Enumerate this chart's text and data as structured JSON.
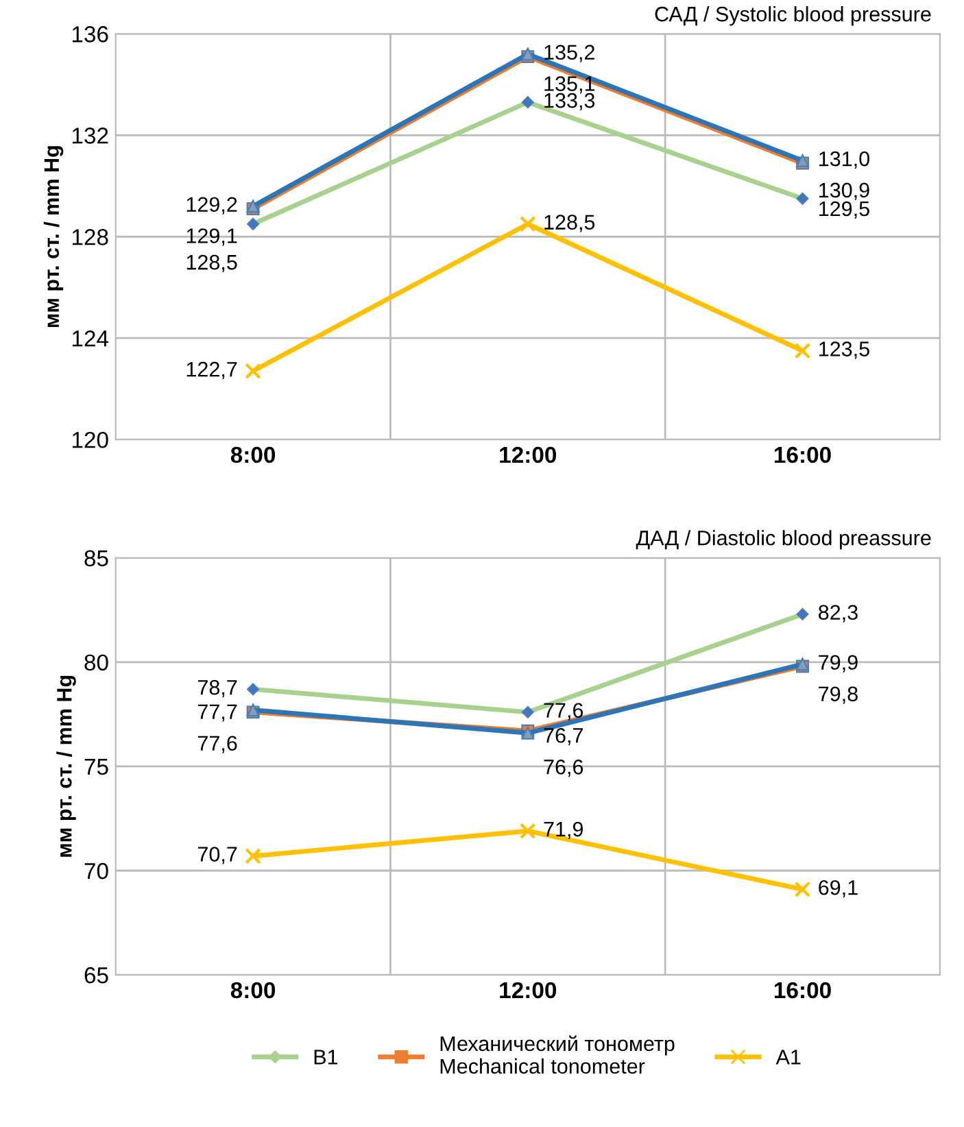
{
  "chart_data": [
    {
      "type": "line",
      "title": "САД / Systolic blood pressure",
      "ylabel": "мм рт. ст. / mm Hg",
      "categories": [
        "8:00",
        "12:00",
        "16:00"
      ],
      "ylim": [
        120,
        136
      ],
      "yticks": [
        120,
        124,
        128,
        132,
        136
      ],
      "grid": true,
      "legend": false,
      "series": [
        {
          "color": "#a9d18e",
          "marker": "diamond",
          "values": [
            128.5,
            133.3,
            129.5
          ],
          "value_labels": [
            "128,5",
            "133,3",
            "129,5"
          ]
        },
        {
          "color": "#ed7d31",
          "marker": "square",
          "values": [
            129.1,
            135.1,
            130.9
          ],
          "value_labels": [
            "129,1",
            "135,1",
            "130,9"
          ]
        },
        {
          "color": "#2e75b6",
          "marker": "triangle",
          "values": [
            129.2,
            135.2,
            131.0
          ],
          "value_labels": [
            "129,2",
            "135,2",
            "131,0"
          ]
        },
        {
          "color": "#ffc000",
          "marker": "cross",
          "values": [
            122.7,
            128.5,
            123.5
          ],
          "value_labels": [
            "122,7",
            "128,5",
            "123,5"
          ]
        }
      ]
    },
    {
      "type": "line",
      "title": "ДАД / Diastolic blood preassure",
      "ylabel": "мм рт. ст. / mm Hg",
      "categories": [
        "8:00",
        "12:00",
        "16:00"
      ],
      "ylim": [
        65,
        85
      ],
      "yticks": [
        65,
        70,
        75,
        80,
        85
      ],
      "grid": true,
      "legend": "bottom",
      "series": [
        {
          "name": "B1",
          "color": "#a9d18e",
          "marker": "diamond",
          "values": [
            78.7,
            77.6,
            82.3
          ],
          "value_labels": [
            "78,7",
            "77,6",
            "82,3"
          ]
        },
        {
          "name": "Механический тонометр\nMechanical tonometer",
          "color": "#ed7d31",
          "marker": "square",
          "values": [
            77.6,
            76.7,
            79.8
          ],
          "value_labels": [
            "77,6",
            "76,7",
            "79,8"
          ]
        },
        {
          "color": "#2e75b6",
          "marker": "triangle",
          "values": [
            77.7,
            76.6,
            79.9
          ],
          "value_labels": [
            "77,7",
            "76,6",
            "79,9"
          ]
        },
        {
          "name": "A1",
          "color": "#ffc000",
          "marker": "cross",
          "values": [
            70.7,
            71.9,
            69.1
          ],
          "value_labels": [
            "70,7",
            "71,9",
            "69,1"
          ]
        }
      ]
    }
  ]
}
